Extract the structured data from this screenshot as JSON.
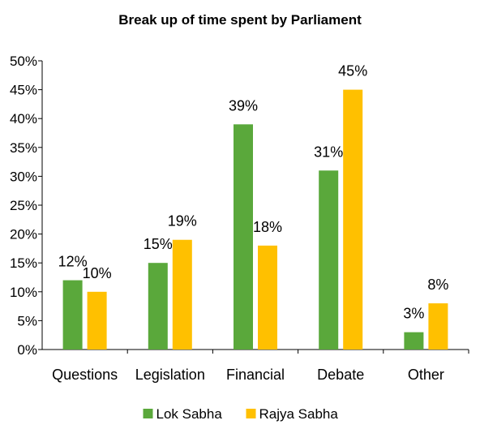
{
  "chart_data": {
    "type": "bar",
    "title": "Break up of time spent by Parliament",
    "xlabel": "",
    "ylabel": "",
    "categories": [
      "Questions",
      "Legislation",
      "Financial",
      "Debate",
      "Other"
    ],
    "series": [
      {
        "name": "Lok Sabha",
        "color": "#5aa83b",
        "values": [
          12,
          15,
          39,
          31,
          3
        ],
        "labels": [
          "12%",
          "15%",
          "39%",
          "31%",
          "3%"
        ]
      },
      {
        "name": "Rajya Sabha",
        "color": "#ffc000",
        "values": [
          10,
          19,
          18,
          45,
          8
        ],
        "labels": [
          "10%",
          "19%",
          "18%",
          "45%",
          "8%"
        ]
      }
    ],
    "ylim": [
      0,
      50
    ],
    "yticks": [
      0,
      5,
      10,
      15,
      20,
      25,
      30,
      35,
      40,
      45,
      50
    ],
    "yticklabels": [
      "0%",
      "5%",
      "10%",
      "15%",
      "20%",
      "25%",
      "30%",
      "35%",
      "40%",
      "45%",
      "50%"
    ],
    "grid": false,
    "legend_position": "bottom-center"
  }
}
